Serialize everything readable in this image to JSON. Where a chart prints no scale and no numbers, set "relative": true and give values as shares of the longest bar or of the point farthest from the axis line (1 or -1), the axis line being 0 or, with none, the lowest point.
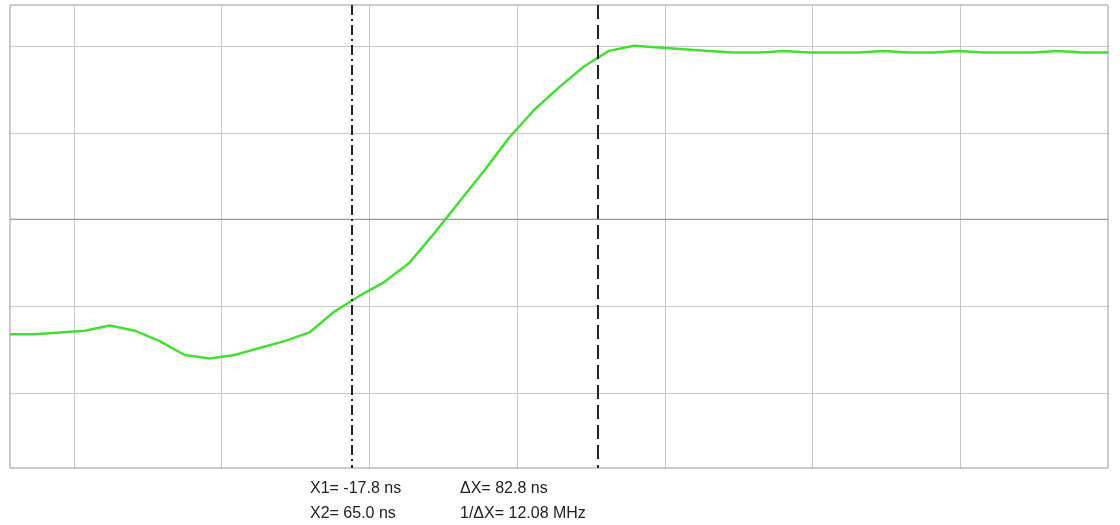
{
  "chart_data": {
    "type": "line",
    "relative": true,
    "categories": [
      null,
      null,
      null,
      null,
      null,
      null,
      null,
      null,
      null,
      null,
      null,
      null,
      null,
      null,
      null,
      null,
      null,
      null,
      null,
      null,
      null,
      null,
      null,
      null,
      null,
      null,
      null,
      null,
      null,
      null,
      null,
      null,
      null,
      null,
      null,
      null,
      null,
      null,
      null,
      null,
      null,
      null,
      null,
      null,
      null
    ],
    "series": [
      {
        "color": "#44dd33",
        "values": [
          -0.66,
          -0.66,
          -0.65,
          -0.64,
          -0.61,
          -0.64,
          -0.7,
          -0.78,
          -0.8,
          -0.78,
          -0.74,
          -0.7,
          -0.65,
          -0.53,
          -0.44,
          -0.36,
          -0.25,
          -0.08,
          0.1,
          0.28,
          0.47,
          0.63,
          0.76,
          0.88,
          0.97,
          1.0,
          0.99,
          0.98,
          0.97,
          0.96,
          0.96,
          0.97,
          0.96,
          0.96,
          0.96,
          0.97,
          0.96,
          0.96,
          0.97,
          0.96,
          0.96,
          0.96,
          0.97,
          0.96,
          0.96
        ]
      }
    ],
    "grid": true,
    "marker": "none",
    "line_style": "solid",
    "annotations": [
      "X1=  -17.8 ns",
      "ΔX=       82.8 ns",
      "X2=   65.0 ns",
      "1/ΔX=  12.08 MHz"
    ]
  }
}
